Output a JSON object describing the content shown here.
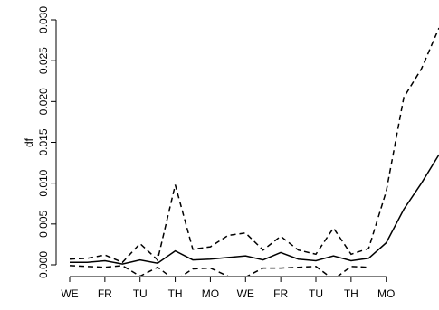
{
  "chart_data": {
    "type": "line",
    "xlabel": "",
    "ylabel": "df",
    "ylim": [
      0,
      0.03
    ],
    "xlim": [
      1,
      22
    ],
    "y_ticks": [
      "0.000",
      "0.005",
      "0.010",
      "0.015",
      "0.020",
      "0.025",
      "0.030"
    ],
    "x_ticks": [
      {
        "x": 1,
        "label": "WE"
      },
      {
        "x": 3,
        "label": "FR"
      },
      {
        "x": 5,
        "label": "TU"
      },
      {
        "x": 7,
        "label": "TH"
      },
      {
        "x": 9,
        "label": "MO"
      },
      {
        "x": 11,
        "label": "WE"
      },
      {
        "x": 13,
        "label": "FR"
      },
      {
        "x": 15,
        "label": "TU"
      },
      {
        "x": 17,
        "label": "TH"
      },
      {
        "x": 19,
        "label": "MO"
      }
    ],
    "grid": false,
    "legend": "none",
    "x": [
      1,
      2,
      3,
      4,
      5,
      6,
      7,
      8,
      9,
      10,
      11,
      12,
      13,
      14,
      15,
      16,
      17,
      18,
      19,
      20,
      21,
      22
    ],
    "series": [
      {
        "style": "solid",
        "values": [
          0.0003,
          0.0003,
          0.0005,
          0.0001,
          0.0006,
          0.0002,
          0.0017,
          0.0006,
          0.0007,
          0.0009,
          0.0011,
          0.0006,
          0.0015,
          0.0007,
          0.0005,
          0.0011,
          0.0005,
          0.0008,
          0.0027,
          0.0068,
          0.01,
          0.0135
        ]
      },
      {
        "style": "dashed",
        "values": [
          0.0007,
          0.0008,
          0.0012,
          0.0003,
          0.0026,
          0.0006,
          0.0098,
          0.0019,
          0.0022,
          0.0036,
          0.0039,
          0.0018,
          0.0035,
          0.0018,
          0.0013,
          0.0045,
          0.0013,
          0.002,
          0.009,
          0.0205,
          0.024,
          0.029
        ]
      },
      {
        "style": "dashed",
        "values": [
          -0.0001,
          -0.0002,
          -0.0003,
          -0.0001,
          -0.0014,
          -0.0003,
          -0.0019,
          -0.0005,
          -0.0004,
          -0.0014,
          -0.0015,
          -0.0004,
          -0.0004,
          -0.0003,
          -0.0002,
          -0.0018,
          -0.0002,
          -0.0003,
          null,
          null,
          null,
          null
        ]
      }
    ]
  }
}
